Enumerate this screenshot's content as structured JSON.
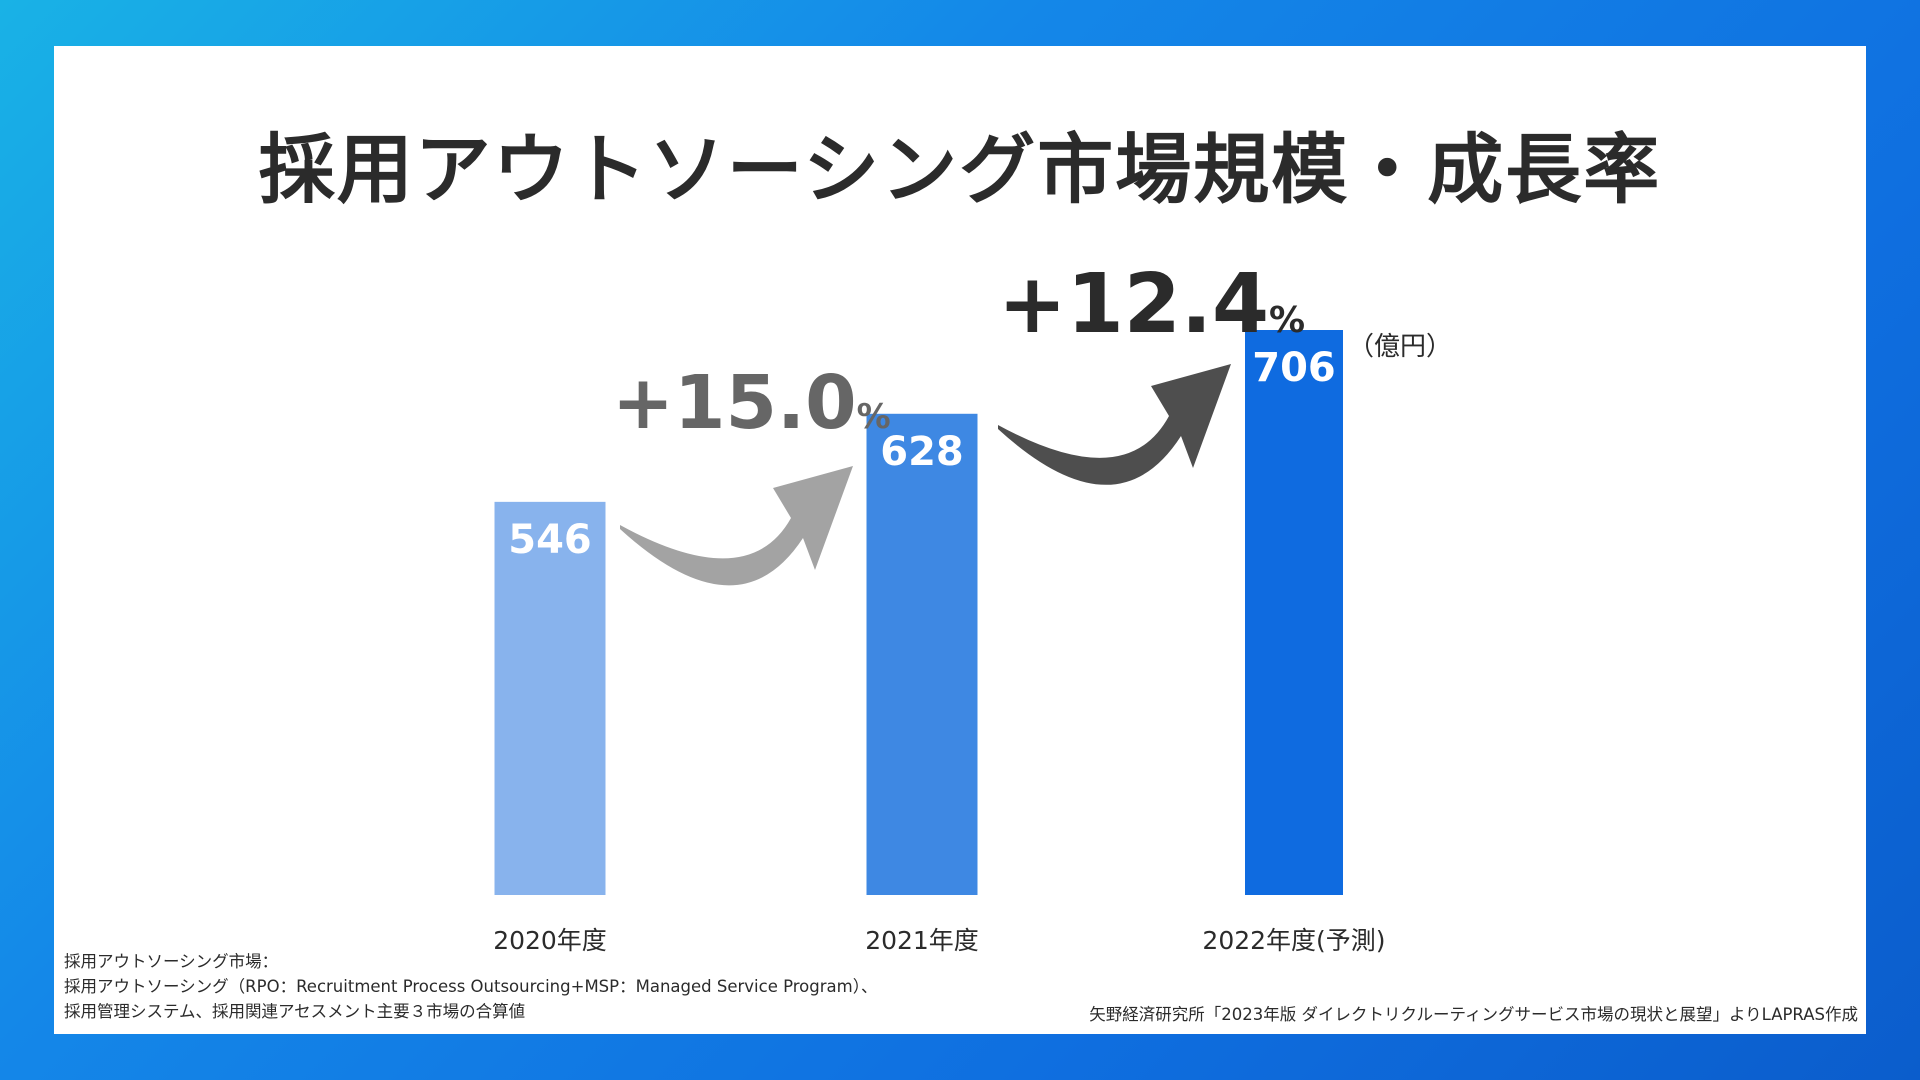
{
  "title": "採用アウトソーシング市場規模・成長率",
  "unit_label": "（億円）",
  "footnote": {
    "lines": [
      "採用アウトソーシング市場：",
      "採用アウトソーシング（RPO：Recruitment Process Outsourcing+MSP：Managed Service Program）、",
      "採用管理システム、採用関連アセスメント主要３市場の合算値"
    ]
  },
  "source": "矢野経済研究所「2023年版 ダイレクトリクルーティングサービス市場の現状と展望」よりLAPRAS作成",
  "colors": {
    "background_gradient_start": "#19b2e6",
    "background_gradient_end": "#0b5dcc",
    "bar_2020": "#88b3ed",
    "bar_2021": "#3e88e3",
    "bar_2022": "#0f6be0",
    "arrow_1": "#a3a3a3",
    "arrow_2": "#4e4e4e",
    "growth_1_text": "#666666",
    "growth_2_text": "#2b2b2b"
  },
  "chart_data": {
    "type": "bar",
    "categories": [
      "2020年度",
      "2021年度",
      "2022年度(予測)"
    ],
    "values": [
      546,
      628,
      706
    ],
    "value_labels": [
      "546",
      "628",
      "706"
    ],
    "unit": "億円",
    "growth": [
      {
        "from": "2020年度",
        "to": "2021年度",
        "value": "+15.0",
        "suffix": "%"
      },
      {
        "from": "2021年度",
        "to": "2022年度(予測)",
        "value": "+12.4",
        "suffix": "%"
      }
    ],
    "xlabel": "",
    "ylabel": "",
    "grid": false,
    "legend": "none"
  }
}
